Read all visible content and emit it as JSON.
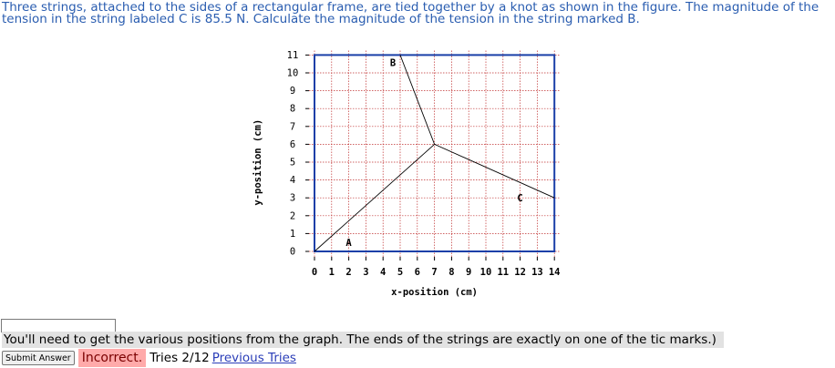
{
  "problem": {
    "text": "Three strings, attached to the sides of a rectangular frame, are tied together by a knot as shown in the figure. The magnitude of the tension in the string labeled C is 85.5 N. Calculate the magnitude of the tension in the string marked B."
  },
  "figure": {
    "xlabel": "x-position (cm)",
    "ylabel": "y-position (cm)",
    "x_ticks": [
      "0",
      "1",
      "2",
      "3",
      "4",
      "5",
      "6",
      "7",
      "8",
      "9",
      "10",
      "11",
      "12",
      "13",
      "14"
    ],
    "y_ticks": [
      "0",
      "1",
      "2",
      "3",
      "4",
      "5",
      "6",
      "7",
      "8",
      "9",
      "10",
      "11"
    ],
    "frame": {
      "x_min": 0,
      "x_max": 14,
      "y_min": 0,
      "y_max": 11
    },
    "knot": {
      "x": 7,
      "y": 6
    },
    "strings": [
      {
        "label": "A",
        "end": {
          "x": 0,
          "y": 0
        }
      },
      {
        "label": "B",
        "end": {
          "x": 5,
          "y": 11
        }
      },
      {
        "label": "C",
        "end": {
          "x": 14,
          "y": 3
        }
      }
    ],
    "frame_color": "#1a3fa8",
    "grid_color": "#c03030"
  },
  "answer": {
    "value": "",
    "hint": "You'll need to get the various positions from the graph. The ends of the strings are exactly on one of the tic marks.)",
    "submit_label": "Submit Answer",
    "status": "Incorrect.",
    "tries": "Tries 2/12",
    "previous_tries_label": "Previous Tries"
  }
}
